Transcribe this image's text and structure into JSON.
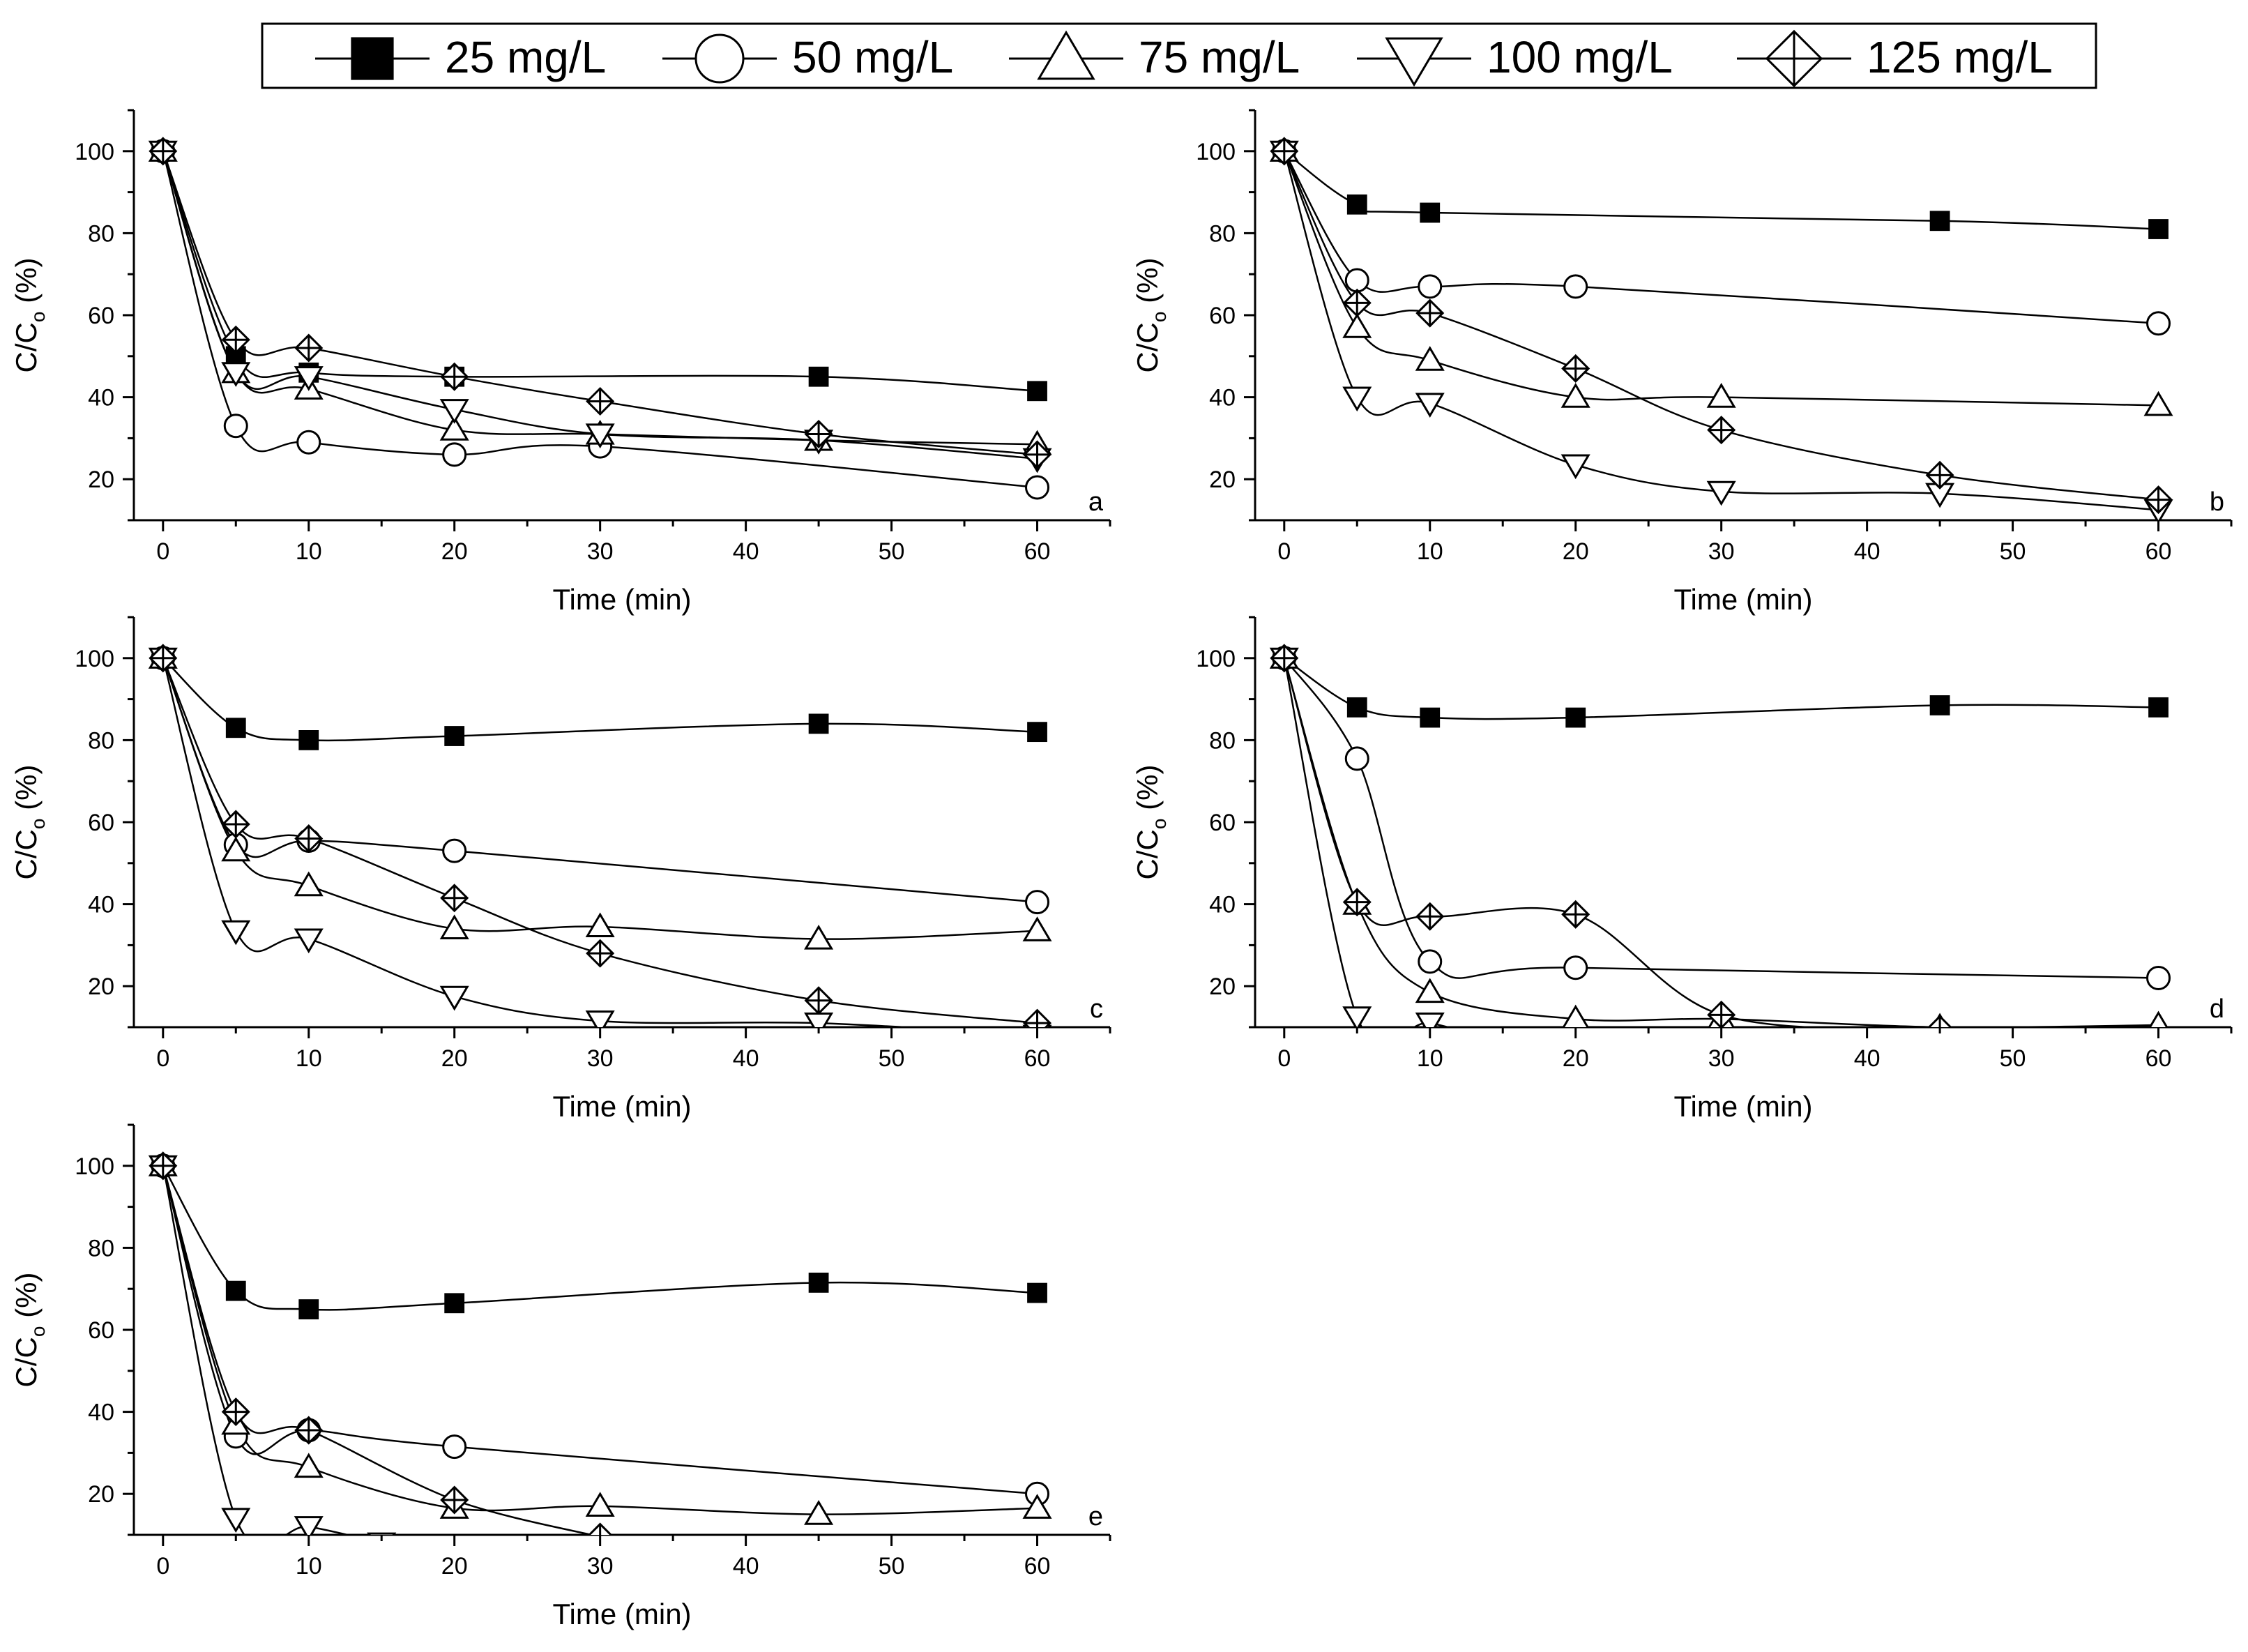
{
  "legend": {
    "entries": [
      {
        "label": "25 mg/L",
        "marker": "filled-square"
      },
      {
        "label": "50 mg/L",
        "marker": "open-circle"
      },
      {
        "label": "75 mg/L",
        "marker": "open-triangle-up"
      },
      {
        "label": "100 mg/L",
        "marker": "open-triangle-down"
      },
      {
        "label": "125 mg/L",
        "marker": "crossed-diamond"
      }
    ]
  },
  "chart_data": [
    {
      "type": "line",
      "panel_label": "a",
      "xlabel": "Time (min)",
      "ylabel": "C/C",
      "ylabel_sub": "o",
      "ylabel_unit": " (%)",
      "xlim": [
        -2,
        65
      ],
      "ylim": [
        10,
        110
      ],
      "xticks": [
        0,
        10,
        20,
        30,
        40,
        50,
        60
      ],
      "yticks": [
        20,
        40,
        60,
        80,
        100
      ],
      "series": [
        {
          "name": "25 mg/L",
          "x": [
            0,
            5,
            10,
            20,
            45,
            60
          ],
          "values": [
            100,
            50,
            46,
            45,
            45,
            41.5
          ]
        },
        {
          "name": "50 mg/L",
          "x": [
            0,
            5,
            10,
            20,
            30,
            60
          ],
          "values": [
            100,
            33,
            29,
            26,
            28,
            18
          ]
        },
        {
          "name": "75 mg/L",
          "x": [
            0,
            5,
            10,
            20,
            30,
            45,
            60
          ],
          "values": [
            100,
            46,
            42,
            32,
            31,
            29.5,
            28.5
          ]
        },
        {
          "name": "100 mg/L",
          "x": [
            0,
            5,
            10,
            20,
            30,
            45,
            60
          ],
          "values": [
            100,
            46,
            45,
            37,
            31,
            29.5,
            25
          ]
        },
        {
          "name": "125 mg/L",
          "x": [
            0,
            5,
            10,
            20,
            30,
            45,
            60
          ],
          "values": [
            100,
            54,
            52,
            45,
            39,
            31,
            26
          ]
        }
      ]
    },
    {
      "type": "line",
      "panel_label": "b",
      "xlabel": "Time (min)",
      "ylabel": "C/C",
      "ylabel_sub": "o",
      "ylabel_unit": " (%)",
      "xlim": [
        -2,
        65
      ],
      "ylim": [
        10,
        110
      ],
      "xticks": [
        0,
        10,
        20,
        30,
        40,
        50,
        60
      ],
      "yticks": [
        20,
        40,
        60,
        80,
        100
      ],
      "series": [
        {
          "name": "25 mg/L",
          "x": [
            0,
            5,
            10,
            45,
            60
          ],
          "values": [
            100,
            87,
            85,
            83,
            81
          ]
        },
        {
          "name": "50 mg/L",
          "x": [
            0,
            5,
            10,
            20,
            60
          ],
          "values": [
            100,
            68.5,
            67,
            67,
            58
          ]
        },
        {
          "name": "75 mg/L",
          "x": [
            0,
            5,
            10,
            20,
            30,
            60
          ],
          "values": [
            100,
            57,
            49,
            40,
            40,
            38
          ]
        },
        {
          "name": "100 mg/L",
          "x": [
            0,
            5,
            10,
            20,
            30,
            45,
            60
          ],
          "values": [
            100,
            40,
            38.5,
            23.5,
            17,
            16.5,
            12.5
          ]
        },
        {
          "name": "125 mg/L",
          "x": [
            0,
            5,
            10,
            20,
            30,
            45,
            60
          ],
          "values": [
            100,
            63,
            60.5,
            47,
            32,
            21,
            15
          ]
        }
      ]
    },
    {
      "type": "line",
      "panel_label": "c",
      "xlabel": "Time (min)",
      "ylabel": "C/C",
      "ylabel_sub": "o",
      "ylabel_unit": " (%)",
      "xlim": [
        -2,
        65
      ],
      "ylim": [
        10,
        110
      ],
      "xticks": [
        0,
        10,
        20,
        30,
        40,
        50,
        60
      ],
      "yticks": [
        20,
        40,
        60,
        80,
        100
      ],
      "series": [
        {
          "name": "25 mg/L",
          "x": [
            0,
            5,
            10,
            20,
            45,
            60
          ],
          "values": [
            100,
            83,
            80,
            81,
            84,
            82
          ]
        },
        {
          "name": "50 mg/L",
          "x": [
            0,
            5,
            10,
            20,
            60
          ],
          "values": [
            100,
            54.5,
            55.5,
            53,
            40.5
          ]
        },
        {
          "name": "75 mg/L",
          "x": [
            0,
            5,
            10,
            20,
            30,
            45,
            60
          ],
          "values": [
            100,
            53,
            44.5,
            34,
            34.5,
            31.5,
            33.5
          ]
        },
        {
          "name": "100 mg/L",
          "x": [
            0,
            5,
            10,
            20,
            30,
            45,
            60
          ],
          "values": [
            100,
            33.5,
            31.5,
            17.5,
            11.5,
            11,
            8
          ]
        },
        {
          "name": "125 mg/L",
          "x": [
            0,
            5,
            10,
            20,
            30,
            45,
            60
          ],
          "values": [
            100,
            59.5,
            56,
            41.5,
            28,
            16.5,
            11
          ]
        }
      ]
    },
    {
      "type": "line",
      "panel_label": "d",
      "xlabel": "Time (min)",
      "ylabel": "C/C",
      "ylabel_sub": "o",
      "ylabel_unit": " (%)",
      "xlim": [
        -2,
        65
      ],
      "ylim": [
        10,
        110
      ],
      "xticks": [
        0,
        10,
        20,
        30,
        40,
        50,
        60
      ],
      "yticks": [
        20,
        40,
        60,
        80,
        100
      ],
      "series": [
        {
          "name": "25 mg/L",
          "x": [
            0,
            5,
            10,
            20,
            45,
            60
          ],
          "values": [
            100,
            88,
            85.5,
            85.5,
            88.5,
            88
          ]
        },
        {
          "name": "50 mg/L",
          "x": [
            0,
            5,
            10,
            20,
            60
          ],
          "values": [
            100,
            75.5,
            26,
            24.5,
            22
          ]
        },
        {
          "name": "75 mg/L",
          "x": [
            0,
            5,
            10,
            20,
            30,
            45,
            60
          ],
          "values": [
            100,
            40,
            18.5,
            12,
            12,
            10,
            10.5
          ]
        },
        {
          "name": "100 mg/L",
          "x": [
            0,
            5,
            10,
            15
          ],
          "values": [
            100,
            12.5,
            11,
            6
          ]
        },
        {
          "name": "125 mg/L",
          "x": [
            0,
            5,
            10,
            20,
            30,
            45
          ],
          "values": [
            100,
            40.5,
            37,
            37.5,
            13,
            9.5
          ]
        }
      ]
    },
    {
      "type": "line",
      "panel_label": "e",
      "xlabel": "Time (min)",
      "ylabel": "C/C",
      "ylabel_sub": "o",
      "ylabel_unit": " (%)",
      "xlim": [
        -2,
        65
      ],
      "ylim": [
        10,
        110
      ],
      "xticks": [
        0,
        10,
        20,
        30,
        40,
        50,
        60
      ],
      "yticks": [
        20,
        40,
        60,
        80,
        100
      ],
      "series": [
        {
          "name": "25 mg/L",
          "x": [
            0,
            5,
            10,
            20,
            45,
            60
          ],
          "values": [
            100,
            69.5,
            65,
            66.5,
            71.5,
            69
          ]
        },
        {
          "name": "50 mg/L",
          "x": [
            0,
            5,
            10,
            20,
            60
          ],
          "values": [
            100,
            34,
            35.5,
            31.5,
            20
          ]
        },
        {
          "name": "75 mg/L",
          "x": [
            0,
            5,
            10,
            20,
            30,
            45,
            60
          ],
          "values": [
            100,
            37,
            26.5,
            16.5,
            17,
            15,
            16.5
          ]
        },
        {
          "name": "100 mg/L",
          "x": [
            0,
            5,
            10,
            15
          ],
          "values": [
            100,
            14,
            12,
            8
          ]
        },
        {
          "name": "125 mg/L",
          "x": [
            0,
            5,
            10,
            20,
            30
          ],
          "values": [
            100,
            40,
            35.5,
            18.5,
            9.5
          ]
        }
      ]
    }
  ]
}
